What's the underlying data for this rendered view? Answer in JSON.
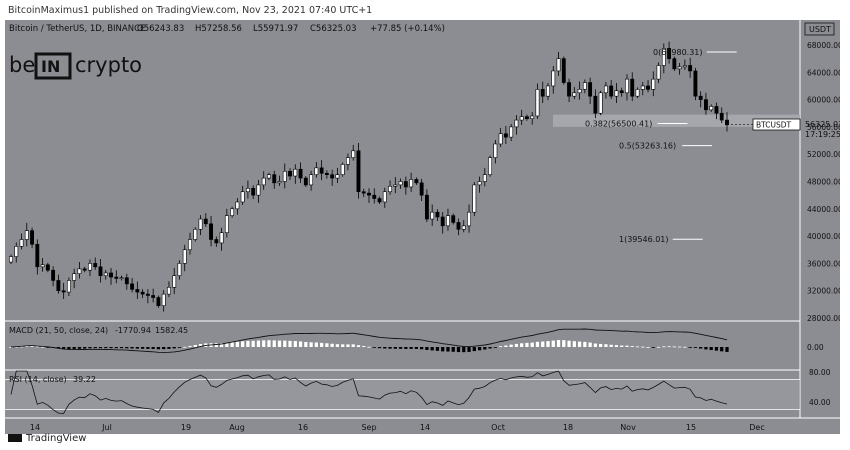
{
  "header": {
    "publisher": "BitcoinMaximus1 published on TradingView.com, Nov 23, 2021 07:40 UTC+1"
  },
  "symbol_line": {
    "pair": "Bitcoin / TetherUS, 1D, BINANCE",
    "open": "O56243.83",
    "high": "H57258.56",
    "low": "L55971.97",
    "close": "C56325.03",
    "change": "+77.85 (+0.14%)"
  },
  "logo": {
    "text_be": "be",
    "text_in": "IN",
    "text_crypto": "crypto"
  },
  "currency_label": "USDT",
  "price_tag": {
    "symbol": "BTCUSDT",
    "price": "56325.03",
    "countdown": "17:19:25"
  },
  "footer": {
    "brand": "TradingView"
  },
  "colors": {
    "background": "#8b8d93",
    "text": "#111111",
    "highlight_band": "#a8aaaf",
    "rsi_band": "#9d9fa4"
  },
  "chart_data": [
    {
      "type": "candlestick",
      "title": "Bitcoin / TetherUS, 1D, BINANCE",
      "x_ticks": [
        "14",
        "Jul",
        "19",
        "Aug",
        "16",
        "Sep",
        "14",
        "Oct",
        "18",
        "Nov",
        "15",
        "Dec"
      ],
      "y_ticks": [
        "68000.00",
        "64000.00",
        "60000.00",
        "56000.00",
        "52000.00",
        "48000.00",
        "44000.00",
        "40000.00",
        "36000.00",
        "32000.00",
        "28000.00"
      ],
      "ylim": [
        28000,
        70000
      ],
      "close_series": [
        37000,
        38500,
        39500,
        40800,
        38800,
        35500,
        35800,
        35000,
        33500,
        32000,
        31800,
        33500,
        34500,
        35200,
        35000,
        36000,
        35500,
        34200,
        34600,
        34000,
        33800,
        33900,
        33000,
        32200,
        31800,
        31500,
        31300,
        31000,
        29800,
        31500,
        32500,
        34200,
        36000,
        38000,
        39500,
        41000,
        42500,
        41800,
        39500,
        39000,
        40500,
        43000,
        44000,
        45000,
        46500,
        47000,
        46000,
        47500,
        48500,
        49000,
        47800,
        48000,
        49500,
        48800,
        49800,
        48500,
        47500,
        49000,
        50000,
        49200,
        49000,
        48500,
        49000,
        50500,
        51500,
        52500,
        46500,
        46300,
        46000,
        45500,
        45000,
        46500,
        47300,
        47500,
        48000,
        47200,
        48300,
        47800,
        46000,
        42500,
        43500,
        42800,
        41500,
        43000,
        42000,
        41000,
        41500,
        43500,
        47500,
        48000,
        49000,
        51500,
        53500,
        55000,
        54500,
        56000,
        57000,
        57500,
        57200,
        57600,
        61500,
        60500,
        62000,
        64200,
        66000,
        62500,
        60500,
        61000,
        61500,
        62500,
        60500,
        58000,
        61000,
        62000,
        60500,
        61300,
        61000,
        63000,
        60500,
        61500,
        62000,
        61500,
        63000,
        65000,
        67500,
        66000,
        64500,
        64800,
        65000,
        64200,
        60500,
        60000,
        58500,
        59000,
        58000,
        57000,
        56300
      ],
      "annotations": [
        {
          "label": "0(66980.31)",
          "value": 66980.31
        },
        {
          "label": "0.382(56500.41)",
          "value": 56500.41
        },
        {
          "label": "0.5(53263.16)",
          "value": 53263.16
        },
        {
          "label": "1(39546.01)",
          "value": 39546.01
        }
      ],
      "highlighted_range": [
        56000,
        57800
      ],
      "last_price": 56325.03
    },
    {
      "type": "histogram",
      "title": "MACD (21, 50, close, 24)",
      "values_text": [
        "-1770.94",
        "1582.45"
      ],
      "y_ticks": [
        "0.00"
      ]
    },
    {
      "type": "line",
      "title": "RSI (14, close)",
      "value_text": "39.22",
      "y_ticks": [
        "80.00",
        "40.00"
      ],
      "band": [
        30,
        70
      ]
    }
  ]
}
